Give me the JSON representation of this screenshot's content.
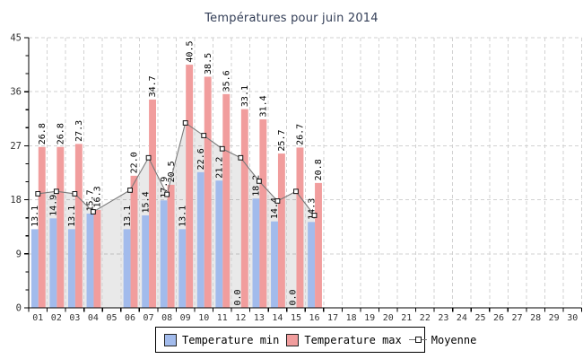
{
  "title": "Températures pour juin 2014",
  "legend": {
    "min_label": "Temperature min",
    "max_label": "Temperature max",
    "moyenne_label": "Moyenne"
  },
  "colors": {
    "min_bar": "#a2bbec",
    "max_bar": "#f19d9d",
    "moyenne_line": "#7a7a7a",
    "moyenne_fill": "rgba(0,0,0,0.085)",
    "marker_fill": "#ffffff",
    "marker_stroke": "#111111",
    "grid": "#d2d2d2",
    "axis": "#000000",
    "tick_label": "#333333",
    "bar_label": "#000000",
    "title": "#323d56"
  },
  "chart_data": {
    "type": "bar",
    "title": "Températures pour juin 2014",
    "categories": [
      "01",
      "02",
      "03",
      "04",
      "05",
      "06",
      "07",
      "08",
      "09",
      "10",
      "11",
      "12",
      "13",
      "14",
      "15",
      "16",
      "17",
      "18",
      "19",
      "20",
      "21",
      "22",
      "23",
      "24",
      "25",
      "26",
      "27",
      "28",
      "29",
      "30"
    ],
    "series": [
      {
        "name": "Temperature min",
        "type": "bar",
        "values": [
          13.1,
          14.9,
          13.1,
          15.7,
          null,
          13.1,
          15.4,
          17.9,
          13.1,
          22.6,
          21.2,
          0.0,
          18.2,
          14.4,
          0.0,
          14.3,
          null,
          null,
          null,
          null,
          null,
          null,
          null,
          null,
          null,
          null,
          null,
          null,
          null,
          null
        ]
      },
      {
        "name": "Temperature max",
        "type": "bar",
        "values": [
          26.8,
          26.8,
          27.3,
          16.3,
          null,
          22.0,
          34.7,
          20.5,
          40.5,
          38.5,
          35.6,
          33.1,
          31.4,
          25.7,
          26.7,
          20.8,
          null,
          null,
          null,
          null,
          null,
          null,
          null,
          null,
          null,
          null,
          null,
          null,
          null,
          null
        ]
      },
      {
        "name": "Moyenne",
        "type": "line",
        "values": [
          19.0,
          19.4,
          19.0,
          16.0,
          null,
          19.6,
          25.0,
          18.9,
          30.8,
          28.7,
          26.5,
          25.0,
          21.1,
          17.8,
          19.4,
          15.4,
          null,
          null,
          null,
          null,
          null,
          null,
          null,
          null,
          null,
          null,
          null,
          null,
          null,
          null
        ]
      }
    ],
    "xlabel": "",
    "ylabel": "",
    "ylim": [
      0,
      45
    ],
    "yticks": [
      0,
      9,
      18,
      27,
      36,
      45
    ],
    "minor_ytick_step": 3,
    "grid": true,
    "grid_style": "dashed",
    "legend_position": "bottom",
    "bar_value_labels": "rotated-90"
  }
}
